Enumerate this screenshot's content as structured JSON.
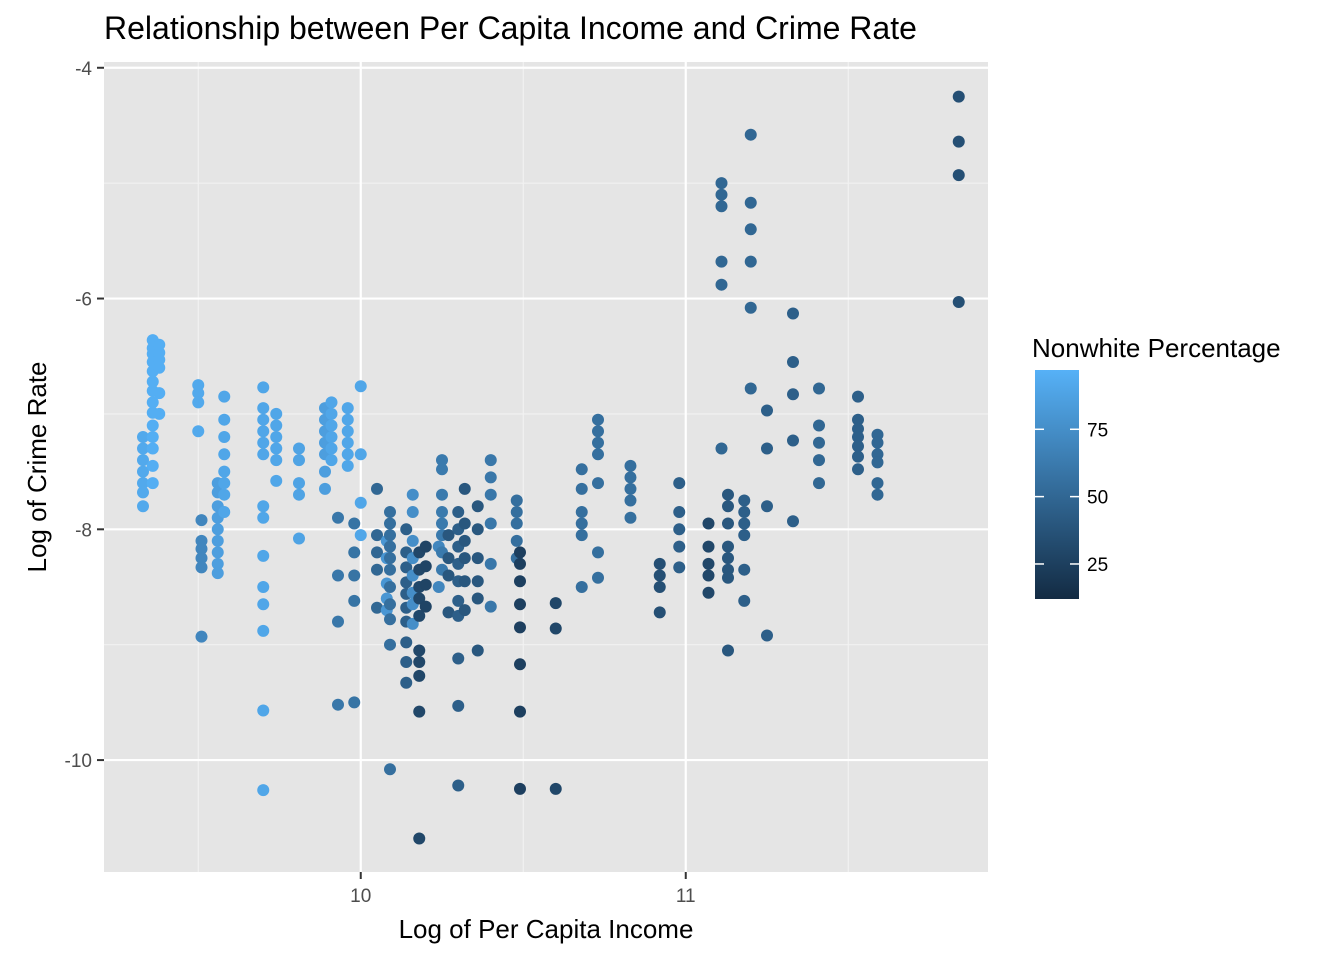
{
  "chart_data": {
    "type": "scatter",
    "title": "Relationship between Per Capita Income and Crime Rate",
    "xlabel": "Log of Per Capita Income",
    "ylabel": "Log of Crime Rate",
    "xlim": [
      9.21,
      11.93
    ],
    "ylim": [
      -10.97,
      -3.95
    ],
    "x_ticks": [
      10,
      11
    ],
    "x_tick_labels": [
      "10",
      "11"
    ],
    "y_ticks": [
      -10,
      -8,
      -6,
      -4
    ],
    "y_tick_labels": [
      "-10",
      "-8",
      "-6",
      "-4"
    ],
    "grid": true,
    "panel_background": "#e5e5e5",
    "legend": {
      "title": "Nonwhite Percentage",
      "placement": "right",
      "range": [
        12,
        97
      ],
      "ticks": [
        25,
        50,
        75
      ],
      "tick_labels": [
        "25",
        "50",
        "75"
      ],
      "color_low": "#132b43",
      "color_high": "#56b1f7"
    },
    "points": [
      [
        9.33,
        -7.2,
        92
      ],
      [
        9.33,
        -7.3,
        92
      ],
      [
        9.33,
        -7.4,
        92
      ],
      [
        9.33,
        -7.5,
        92
      ],
      [
        9.33,
        -7.6,
        92
      ],
      [
        9.33,
        -7.68,
        92
      ],
      [
        9.33,
        -7.8,
        92
      ],
      [
        9.36,
        -6.36,
        95
      ],
      [
        9.36,
        -6.43,
        95
      ],
      [
        9.36,
        -6.48,
        95
      ],
      [
        9.36,
        -6.55,
        95
      ],
      [
        9.36,
        -6.63,
        95
      ],
      [
        9.36,
        -6.72,
        95
      ],
      [
        9.36,
        -6.8,
        95
      ],
      [
        9.36,
        -6.9,
        95
      ],
      [
        9.36,
        -6.99,
        95
      ],
      [
        9.36,
        -7.1,
        95
      ],
      [
        9.36,
        -7.2,
        95
      ],
      [
        9.36,
        -7.3,
        95
      ],
      [
        9.36,
        -7.45,
        95
      ],
      [
        9.36,
        -7.6,
        95
      ],
      [
        9.38,
        -6.4,
        95
      ],
      [
        9.38,
        -6.47,
        95
      ],
      [
        9.38,
        -6.53,
        95
      ],
      [
        9.38,
        -6.6,
        95
      ],
      [
        9.38,
        -6.82,
        95
      ],
      [
        9.38,
        -7.0,
        95
      ],
      [
        9.5,
        -6.75,
        92
      ],
      [
        9.5,
        -6.82,
        92
      ],
      [
        9.5,
        -6.9,
        92
      ],
      [
        9.5,
        -7.15,
        92
      ],
      [
        9.51,
        -7.92,
        70
      ],
      [
        9.51,
        -8.1,
        70
      ],
      [
        9.51,
        -8.17,
        70
      ],
      [
        9.51,
        -8.25,
        70
      ],
      [
        9.51,
        -8.33,
        70
      ],
      [
        9.51,
        -8.93,
        70
      ],
      [
        9.56,
        -7.6,
        85
      ],
      [
        9.56,
        -7.68,
        85
      ],
      [
        9.56,
        -7.8,
        85
      ],
      [
        9.56,
        -7.9,
        85
      ],
      [
        9.56,
        -8.0,
        85
      ],
      [
        9.56,
        -8.1,
        85
      ],
      [
        9.56,
        -8.2,
        85
      ],
      [
        9.56,
        -8.3,
        85
      ],
      [
        9.56,
        -8.38,
        85
      ],
      [
        9.58,
        -6.85,
        90
      ],
      [
        9.58,
        -7.05,
        90
      ],
      [
        9.58,
        -7.2,
        90
      ],
      [
        9.58,
        -7.35,
        90
      ],
      [
        9.58,
        -7.5,
        90
      ],
      [
        9.58,
        -7.6,
        90
      ],
      [
        9.58,
        -7.7,
        90
      ],
      [
        9.58,
        -7.85,
        90
      ],
      [
        9.7,
        -6.77,
        90
      ],
      [
        9.7,
        -6.95,
        90
      ],
      [
        9.7,
        -7.05,
        90
      ],
      [
        9.7,
        -7.15,
        90
      ],
      [
        9.7,
        -7.25,
        90
      ],
      [
        9.7,
        -7.35,
        90
      ],
      [
        9.7,
        -7.8,
        90
      ],
      [
        9.7,
        -7.9,
        90
      ],
      [
        9.7,
        -8.23,
        90
      ],
      [
        9.7,
        -8.5,
        90
      ],
      [
        9.7,
        -8.65,
        90
      ],
      [
        9.7,
        -8.88,
        90
      ],
      [
        9.7,
        -9.57,
        90
      ],
      [
        9.7,
        -10.26,
        90
      ],
      [
        9.74,
        -7.0,
        90
      ],
      [
        9.74,
        -7.1,
        90
      ],
      [
        9.74,
        -7.2,
        90
      ],
      [
        9.74,
        -7.3,
        90
      ],
      [
        9.74,
        -7.4,
        90
      ],
      [
        9.74,
        -7.58,
        90
      ],
      [
        9.81,
        -7.3,
        88
      ],
      [
        9.81,
        -7.4,
        88
      ],
      [
        9.81,
        -7.6,
        88
      ],
      [
        9.81,
        -7.7,
        88
      ],
      [
        9.81,
        -8.08,
        88
      ],
      [
        9.89,
        -6.95,
        85
      ],
      [
        9.89,
        -7.05,
        85
      ],
      [
        9.89,
        -7.15,
        85
      ],
      [
        9.89,
        -7.25,
        85
      ],
      [
        9.89,
        -7.35,
        85
      ],
      [
        9.89,
        -7.5,
        85
      ],
      [
        9.89,
        -7.65,
        85
      ],
      [
        9.91,
        -6.9,
        90
      ],
      [
        9.91,
        -7.0,
        90
      ],
      [
        9.91,
        -7.1,
        90
      ],
      [
        9.91,
        -7.2,
        90
      ],
      [
        9.91,
        -7.3,
        90
      ],
      [
        9.91,
        -7.4,
        90
      ],
      [
        9.93,
        -7.9,
        60
      ],
      [
        9.93,
        -8.4,
        60
      ],
      [
        9.93,
        -8.8,
        60
      ],
      [
        9.93,
        -9.52,
        60
      ],
      [
        9.96,
        -6.95,
        90
      ],
      [
        9.96,
        -7.05,
        90
      ],
      [
        9.96,
        -7.15,
        90
      ],
      [
        9.96,
        -7.25,
        90
      ],
      [
        9.96,
        -7.35,
        90
      ],
      [
        9.96,
        -7.45,
        90
      ],
      [
        9.98,
        -7.95,
        58
      ],
      [
        9.98,
        -8.2,
        58
      ],
      [
        9.98,
        -8.4,
        58
      ],
      [
        9.98,
        -8.62,
        58
      ],
      [
        9.98,
        -9.5,
        58
      ],
      [
        10.0,
        -6.76,
        90
      ],
      [
        10.0,
        -7.35,
        90
      ],
      [
        10.0,
        -7.77,
        90
      ],
      [
        10.0,
        -8.05,
        90
      ],
      [
        10.05,
        -7.65,
        50
      ],
      [
        10.05,
        -8.05,
        50
      ],
      [
        10.05,
        -8.2,
        50
      ],
      [
        10.05,
        -8.35,
        50
      ],
      [
        10.05,
        -8.68,
        50
      ],
      [
        10.08,
        -8.25,
        80
      ],
      [
        10.08,
        -8.1,
        80
      ],
      [
        10.08,
        -8.47,
        80
      ],
      [
        10.08,
        -8.6,
        80
      ],
      [
        10.08,
        -8.7,
        80
      ],
      [
        10.09,
        -7.85,
        55
      ],
      [
        10.09,
        -7.95,
        55
      ],
      [
        10.09,
        -8.05,
        55
      ],
      [
        10.09,
        -8.15,
        55
      ],
      [
        10.09,
        -8.25,
        55
      ],
      [
        10.09,
        -8.35,
        55
      ],
      [
        10.09,
        -8.5,
        55
      ],
      [
        10.09,
        -8.65,
        55
      ],
      [
        10.09,
        -8.78,
        55
      ],
      [
        10.09,
        -9.0,
        55
      ],
      [
        10.09,
        -10.08,
        55
      ],
      [
        10.14,
        -8.0,
        45
      ],
      [
        10.14,
        -8.2,
        45
      ],
      [
        10.14,
        -8.33,
        45
      ],
      [
        10.14,
        -8.46,
        45
      ],
      [
        10.14,
        -8.56,
        45
      ],
      [
        10.14,
        -8.68,
        45
      ],
      [
        10.14,
        -8.8,
        45
      ],
      [
        10.14,
        -8.98,
        45
      ],
      [
        10.14,
        -9.15,
        45
      ],
      [
        10.14,
        -9.33,
        45
      ],
      [
        10.16,
        -7.7,
        75
      ],
      [
        10.16,
        -7.85,
        75
      ],
      [
        10.16,
        -8.1,
        75
      ],
      [
        10.16,
        -8.25,
        75
      ],
      [
        10.16,
        -8.4,
        75
      ],
      [
        10.16,
        -8.55,
        75
      ],
      [
        10.16,
        -8.65,
        75
      ],
      [
        10.16,
        -8.82,
        75
      ],
      [
        10.18,
        -8.2,
        30
      ],
      [
        10.18,
        -8.35,
        30
      ],
      [
        10.18,
        -8.5,
        30
      ],
      [
        10.18,
        -8.6,
        30
      ],
      [
        10.18,
        -8.75,
        30
      ],
      [
        10.18,
        -9.05,
        30
      ],
      [
        10.18,
        -9.15,
        30
      ],
      [
        10.18,
        -9.27,
        30
      ],
      [
        10.18,
        -9.58,
        30
      ],
      [
        10.18,
        -10.68,
        30
      ],
      [
        10.2,
        -8.15,
        28
      ],
      [
        10.2,
        -8.32,
        28
      ],
      [
        10.2,
        -8.48,
        28
      ],
      [
        10.2,
        -8.67,
        28
      ],
      [
        10.24,
        -8.15,
        70
      ],
      [
        10.24,
        -8.5,
        70
      ],
      [
        10.25,
        -7.4,
        62
      ],
      [
        10.25,
        -7.48,
        62
      ],
      [
        10.25,
        -7.7,
        62
      ],
      [
        10.25,
        -7.85,
        62
      ],
      [
        10.25,
        -7.95,
        62
      ],
      [
        10.25,
        -8.05,
        62
      ],
      [
        10.25,
        -8.2,
        62
      ],
      [
        10.25,
        -8.35,
        62
      ],
      [
        10.27,
        -8.05,
        40
      ],
      [
        10.27,
        -8.25,
        40
      ],
      [
        10.27,
        -8.4,
        40
      ],
      [
        10.27,
        -8.72,
        40
      ],
      [
        10.3,
        -7.85,
        45
      ],
      [
        10.3,
        -8.0,
        45
      ],
      [
        10.3,
        -8.15,
        45
      ],
      [
        10.3,
        -8.3,
        45
      ],
      [
        10.3,
        -8.45,
        45
      ],
      [
        10.3,
        -8.62,
        45
      ],
      [
        10.3,
        -8.75,
        45
      ],
      [
        10.3,
        -9.12,
        45
      ],
      [
        10.3,
        -9.53,
        45
      ],
      [
        10.3,
        -10.22,
        45
      ],
      [
        10.32,
        -7.65,
        40
      ],
      [
        10.32,
        -7.95,
        40
      ],
      [
        10.32,
        -8.1,
        40
      ],
      [
        10.32,
        -8.25,
        40
      ],
      [
        10.32,
        -8.45,
        40
      ],
      [
        10.32,
        -8.7,
        40
      ],
      [
        10.36,
        -7.8,
        40
      ],
      [
        10.36,
        -8.0,
        40
      ],
      [
        10.36,
        -8.25,
        40
      ],
      [
        10.36,
        -8.45,
        40
      ],
      [
        10.36,
        -8.6,
        40
      ],
      [
        10.36,
        -9.05,
        40
      ],
      [
        10.4,
        -7.4,
        60
      ],
      [
        10.4,
        -7.55,
        60
      ],
      [
        10.4,
        -7.7,
        60
      ],
      [
        10.4,
        -7.95,
        60
      ],
      [
        10.4,
        -8.3,
        60
      ],
      [
        10.4,
        -8.67,
        60
      ],
      [
        10.48,
        -7.75,
        55
      ],
      [
        10.48,
        -7.85,
        55
      ],
      [
        10.48,
        -7.95,
        55
      ],
      [
        10.48,
        -8.1,
        55
      ],
      [
        10.48,
        -8.25,
        55
      ],
      [
        10.49,
        -8.2,
        25
      ],
      [
        10.49,
        -8.3,
        25
      ],
      [
        10.49,
        -8.45,
        25
      ],
      [
        10.49,
        -8.65,
        25
      ],
      [
        10.49,
        -8.85,
        25
      ],
      [
        10.49,
        -9.17,
        25
      ],
      [
        10.49,
        -9.58,
        25
      ],
      [
        10.49,
        -10.25,
        25
      ],
      [
        10.6,
        -8.64,
        30
      ],
      [
        10.6,
        -8.86,
        30
      ],
      [
        10.6,
        -10.25,
        30
      ],
      [
        10.68,
        -7.48,
        55
      ],
      [
        10.68,
        -7.65,
        55
      ],
      [
        10.68,
        -7.85,
        55
      ],
      [
        10.68,
        -7.95,
        55
      ],
      [
        10.68,
        -8.05,
        55
      ],
      [
        10.68,
        -8.5,
        55
      ],
      [
        10.73,
        -7.05,
        55
      ],
      [
        10.73,
        -7.15,
        55
      ],
      [
        10.73,
        -7.25,
        55
      ],
      [
        10.73,
        -7.35,
        55
      ],
      [
        10.73,
        -7.6,
        55
      ],
      [
        10.73,
        -8.2,
        55
      ],
      [
        10.73,
        -8.42,
        55
      ],
      [
        10.83,
        -7.45,
        55
      ],
      [
        10.83,
        -7.55,
        55
      ],
      [
        10.83,
        -7.65,
        55
      ],
      [
        10.83,
        -7.75,
        55
      ],
      [
        10.83,
        -7.9,
        55
      ],
      [
        10.92,
        -8.3,
        35
      ],
      [
        10.92,
        -8.4,
        35
      ],
      [
        10.92,
        -8.5,
        35
      ],
      [
        10.92,
        -8.72,
        35
      ],
      [
        10.98,
        -7.6,
        45
      ],
      [
        10.98,
        -7.85,
        45
      ],
      [
        10.98,
        -8.0,
        45
      ],
      [
        10.98,
        -8.15,
        45
      ],
      [
        10.98,
        -8.33,
        45
      ],
      [
        11.07,
        -7.95,
        30
      ],
      [
        11.07,
        -8.15,
        30
      ],
      [
        11.07,
        -8.3,
        30
      ],
      [
        11.07,
        -8.4,
        30
      ],
      [
        11.07,
        -8.55,
        30
      ],
      [
        11.11,
        -5.0,
        50
      ],
      [
        11.11,
        -5.1,
        50
      ],
      [
        11.11,
        -5.2,
        50
      ],
      [
        11.11,
        -5.68,
        50
      ],
      [
        11.11,
        -5.88,
        50
      ],
      [
        11.11,
        -7.3,
        50
      ],
      [
        11.13,
        -7.7,
        40
      ],
      [
        11.13,
        -7.8,
        40
      ],
      [
        11.13,
        -7.95,
        40
      ],
      [
        11.13,
        -8.15,
        40
      ],
      [
        11.13,
        -8.25,
        40
      ],
      [
        11.13,
        -8.35,
        40
      ],
      [
        11.13,
        -8.42,
        40
      ],
      [
        11.13,
        -9.05,
        40
      ],
      [
        11.18,
        -7.75,
        45
      ],
      [
        11.18,
        -7.85,
        45
      ],
      [
        11.18,
        -7.95,
        45
      ],
      [
        11.18,
        -8.05,
        45
      ],
      [
        11.18,
        -8.35,
        45
      ],
      [
        11.18,
        -8.62,
        45
      ],
      [
        11.2,
        -4.58,
        50
      ],
      [
        11.2,
        -5.17,
        50
      ],
      [
        11.2,
        -5.4,
        50
      ],
      [
        11.2,
        -5.68,
        50
      ],
      [
        11.2,
        -6.08,
        50
      ],
      [
        11.2,
        -6.78,
        50
      ],
      [
        11.25,
        -6.97,
        45
      ],
      [
        11.25,
        -7.3,
        45
      ],
      [
        11.25,
        -7.8,
        45
      ],
      [
        11.25,
        -8.92,
        45
      ],
      [
        11.33,
        -6.13,
        45
      ],
      [
        11.33,
        -6.55,
        45
      ],
      [
        11.33,
        -6.83,
        45
      ],
      [
        11.33,
        -7.23,
        45
      ],
      [
        11.33,
        -7.93,
        45
      ],
      [
        11.41,
        -6.78,
        50
      ],
      [
        11.41,
        -7.1,
        50
      ],
      [
        11.41,
        -7.25,
        50
      ],
      [
        11.41,
        -7.4,
        50
      ],
      [
        11.41,
        -7.6,
        50
      ],
      [
        11.53,
        -6.85,
        45
      ],
      [
        11.53,
        -7.05,
        45
      ],
      [
        11.53,
        -7.13,
        45
      ],
      [
        11.53,
        -7.2,
        45
      ],
      [
        11.53,
        -7.28,
        45
      ],
      [
        11.53,
        -7.37,
        45
      ],
      [
        11.53,
        -7.48,
        45
      ],
      [
        11.59,
        -7.18,
        50
      ],
      [
        11.59,
        -7.25,
        50
      ],
      [
        11.59,
        -7.35,
        50
      ],
      [
        11.59,
        -7.42,
        50
      ],
      [
        11.59,
        -7.6,
        50
      ],
      [
        11.59,
        -7.7,
        50
      ],
      [
        11.84,
        -4.25,
        35
      ],
      [
        11.84,
        -4.64,
        35
      ],
      [
        11.84,
        -4.93,
        35
      ],
      [
        11.84,
        -6.03,
        35
      ]
    ]
  }
}
